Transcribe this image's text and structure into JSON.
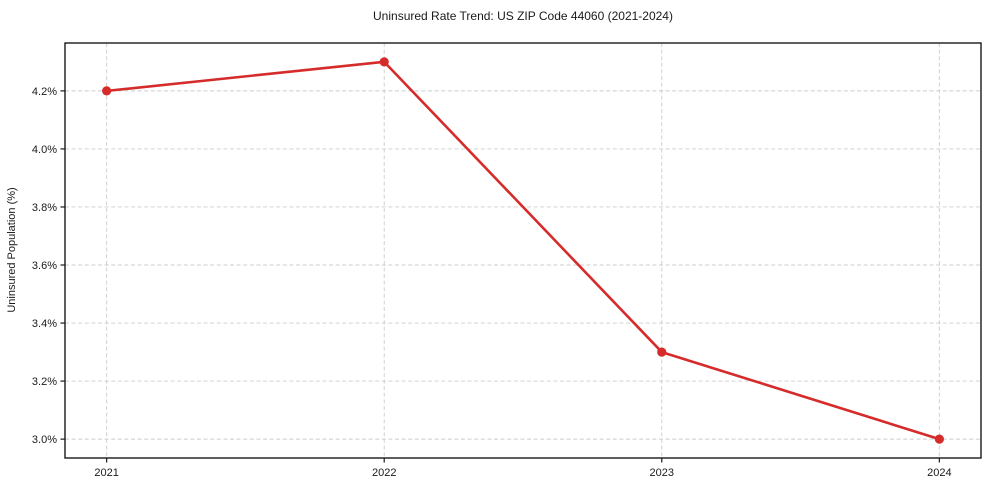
{
  "chart_data": {
    "type": "line",
    "title": "Uninsured Rate Trend: US ZIP Code 44060 (2021-2024)",
    "xlabel": "",
    "ylabel": "Uninsured Population (%)",
    "x": [
      2021,
      2022,
      2023,
      2024
    ],
    "x_tick_labels": [
      "2021",
      "2022",
      "2023",
      "2024"
    ],
    "series": [
      {
        "name": "Uninsured rate",
        "values": [
          4.2,
          4.3,
          3.3,
          3.0
        ],
        "color": "#d62b2b"
      }
    ],
    "y_ticks": [
      3.0,
      3.2,
      3.4,
      3.6,
      3.8,
      4.0,
      4.2
    ],
    "y_tick_labels": [
      "3.0%",
      "3.2%",
      "3.4%",
      "3.6%",
      "3.8%",
      "4.0%",
      "4.2%"
    ],
    "xlim": [
      2020.85,
      2024.15
    ],
    "ylim": [
      2.935,
      4.365
    ],
    "grid": true,
    "grid_style": "dashed",
    "grid_color": "#cccccc",
    "spine_color": "#1a1a1a",
    "background": "#ffffff",
    "legend": "none"
  }
}
